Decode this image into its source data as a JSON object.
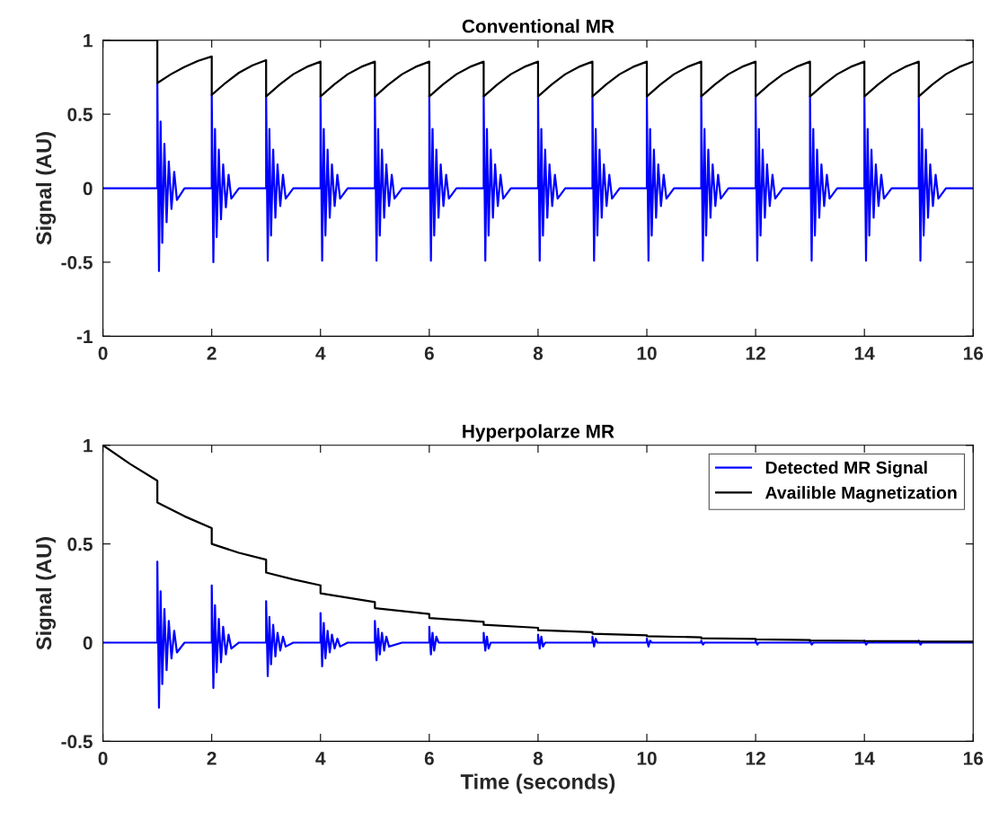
{
  "chart_data": [
    {
      "type": "line",
      "title": "Conventional MR",
      "ylabel": "Signal (AU)",
      "xlim": [
        0,
        16
      ],
      "xticks": [
        0,
        2,
        4,
        6,
        8,
        10,
        12,
        14,
        16
      ],
      "ylim": [
        -1,
        1
      ],
      "yticks": [
        -1,
        -0.5,
        0,
        0.5,
        1
      ],
      "grid": false,
      "legend": false,
      "marker": "none",
      "line_style": "solid",
      "series": [
        {
          "color": "#0000ff",
          "x": [
            0,
            1,
            1,
            1.03,
            1.06,
            1.09,
            1.13,
            1.17,
            1.21,
            1.26,
            1.31,
            1.36,
            1.5,
            2,
            2,
            2.03,
            2.06,
            2.09,
            2.13,
            2.17,
            2.21,
            2.26,
            2.31,
            2.36,
            2.5,
            3,
            3,
            3.03,
            3.06,
            3.09,
            3.13,
            3.17,
            3.21,
            3.26,
            3.31,
            3.36,
            3.5,
            4,
            4,
            4.03,
            4.06,
            4.09,
            4.13,
            4.17,
            4.21,
            4.26,
            4.31,
            4.36,
            4.5,
            5,
            5,
            5.03,
            5.06,
            5.09,
            5.13,
            5.17,
            5.21,
            5.26,
            5.31,
            5.36,
            5.5,
            6,
            6,
            6.03,
            6.06,
            6.09,
            6.13,
            6.17,
            6.21,
            6.26,
            6.31,
            6.36,
            6.5,
            7,
            7,
            7.03,
            7.06,
            7.09,
            7.13,
            7.17,
            7.21,
            7.26,
            7.31,
            7.36,
            7.5,
            8,
            8,
            8.03,
            8.06,
            8.09,
            8.13,
            8.17,
            8.21,
            8.26,
            8.31,
            8.36,
            8.5,
            9,
            9,
            9.03,
            9.06,
            9.09,
            9.13,
            9.17,
            9.21,
            9.26,
            9.31,
            9.36,
            9.5,
            10,
            10,
            10.03,
            10.06,
            10.09,
            10.13,
            10.17,
            10.21,
            10.26,
            10.31,
            10.36,
            10.5,
            11,
            11,
            11.03,
            11.06,
            11.09,
            11.13,
            11.17,
            11.21,
            11.26,
            11.31,
            11.36,
            11.5,
            12,
            12,
            12.03,
            12.06,
            12.09,
            12.13,
            12.17,
            12.21,
            12.26,
            12.31,
            12.36,
            12.5,
            13,
            13,
            13.03,
            13.06,
            13.09,
            13.13,
            13.17,
            13.21,
            13.26,
            13.31,
            13.36,
            13.5,
            14,
            14,
            14.03,
            14.06,
            14.09,
            14.13,
            14.17,
            14.21,
            14.26,
            14.31,
            14.36,
            14.5,
            15,
            15,
            15.03,
            15.06,
            15.09,
            15.13,
            15.17,
            15.21,
            15.26,
            15.31,
            15.36,
            15.5,
            16
          ],
          "values": [
            0,
            0,
            0.71,
            -0.56,
            0.45,
            -0.37,
            0.3,
            -0.23,
            0.18,
            -0.14,
            0.11,
            -0.08,
            0,
            0,
            0.63,
            -0.5,
            0.4,
            -0.33,
            0.26,
            -0.21,
            0.16,
            -0.13,
            0.09,
            -0.07,
            0,
            0,
            0.62,
            -0.49,
            0.4,
            -0.32,
            0.26,
            -0.2,
            0.16,
            -0.12,
            0.09,
            -0.07,
            0,
            0,
            0.62,
            -0.49,
            0.4,
            -0.32,
            0.26,
            -0.2,
            0.16,
            -0.12,
            0.09,
            -0.07,
            0,
            0,
            0.62,
            -0.49,
            0.4,
            -0.32,
            0.26,
            -0.2,
            0.16,
            -0.12,
            0.09,
            -0.07,
            0,
            0,
            0.62,
            -0.49,
            0.4,
            -0.32,
            0.26,
            -0.2,
            0.16,
            -0.12,
            0.09,
            -0.07,
            0,
            0,
            0.62,
            -0.49,
            0.4,
            -0.32,
            0.26,
            -0.2,
            0.16,
            -0.12,
            0.09,
            -0.07,
            0,
            0,
            0.62,
            -0.49,
            0.4,
            -0.32,
            0.26,
            -0.2,
            0.16,
            -0.12,
            0.09,
            -0.07,
            0,
            0,
            0.62,
            -0.49,
            0.4,
            -0.32,
            0.26,
            -0.2,
            0.16,
            -0.12,
            0.09,
            -0.07,
            0,
            0,
            0.62,
            -0.49,
            0.4,
            -0.32,
            0.26,
            -0.2,
            0.16,
            -0.12,
            0.09,
            -0.07,
            0,
            0,
            0.62,
            -0.49,
            0.4,
            -0.32,
            0.26,
            -0.2,
            0.16,
            -0.12,
            0.09,
            -0.07,
            0,
            0,
            0.62,
            -0.49,
            0.4,
            -0.32,
            0.26,
            -0.2,
            0.16,
            -0.12,
            0.09,
            -0.07,
            0,
            0,
            0.62,
            -0.49,
            0.4,
            -0.32,
            0.26,
            -0.2,
            0.16,
            -0.12,
            0.09,
            -0.07,
            0,
            0,
            0.62,
            -0.49,
            0.4,
            -0.32,
            0.26,
            -0.2,
            0.16,
            -0.12,
            0.09,
            -0.07,
            0,
            0,
            0.62,
            -0.49,
            0.4,
            -0.32,
            0.26,
            -0.2,
            0.16,
            -0.12,
            0.09,
            -0.07,
            0,
            0
          ]
        },
        {
          "color": "#000000",
          "x": [
            0,
            1,
            1,
            1.25,
            1.5,
            1.75,
            2,
            2,
            2.25,
            2.5,
            2.75,
            3,
            3,
            3.25,
            3.5,
            3.75,
            4,
            4,
            4.25,
            4.5,
            4.75,
            5,
            5,
            5.25,
            5.5,
            5.75,
            6,
            6,
            6.25,
            6.5,
            6.75,
            7,
            7,
            7.25,
            7.5,
            7.75,
            8,
            8,
            8.25,
            8.5,
            8.75,
            9,
            9,
            9.25,
            9.5,
            9.75,
            10,
            10,
            10.25,
            10.5,
            10.75,
            11,
            11,
            11.25,
            11.5,
            11.75,
            12,
            12,
            12.25,
            12.5,
            12.75,
            13,
            13,
            13.25,
            13.5,
            13.75,
            14,
            14,
            14.25,
            14.5,
            14.75,
            15,
            15,
            15.25,
            15.5,
            15.75,
            16
          ],
          "values": [
            1,
            1,
            0.71,
            0.77,
            0.82,
            0.86,
            0.89,
            0.63,
            0.71,
            0.78,
            0.83,
            0.865,
            0.62,
            0.7,
            0.77,
            0.82,
            0.855,
            0.62,
            0.7,
            0.77,
            0.82,
            0.855,
            0.62,
            0.7,
            0.77,
            0.82,
            0.855,
            0.62,
            0.7,
            0.77,
            0.82,
            0.855,
            0.62,
            0.7,
            0.77,
            0.82,
            0.855,
            0.62,
            0.7,
            0.77,
            0.82,
            0.855,
            0.62,
            0.7,
            0.77,
            0.82,
            0.855,
            0.62,
            0.7,
            0.77,
            0.82,
            0.855,
            0.62,
            0.7,
            0.77,
            0.82,
            0.855,
            0.62,
            0.7,
            0.77,
            0.82,
            0.855,
            0.62,
            0.7,
            0.77,
            0.82,
            0.855,
            0.62,
            0.7,
            0.77,
            0.82,
            0.855,
            0.62,
            0.7,
            0.77,
            0.82,
            0.855
          ]
        }
      ]
    },
    {
      "type": "line",
      "title": "Hyperpolarze MR",
      "xlabel": "Time (seconds)",
      "ylabel": "Signal (AU)",
      "xlim": [
        0,
        16
      ],
      "xticks": [
        0,
        2,
        4,
        6,
        8,
        10,
        12,
        14,
        16
      ],
      "ylim": [
        -0.5,
        1
      ],
      "yticks": [
        -0.5,
        0,
        0.5,
        1
      ],
      "grid": false,
      "legend": "top right",
      "marker": "none",
      "line_style": "solid",
      "series": [
        {
          "name": "Detected MR Signal",
          "color": "#0000ff",
          "x": [
            0,
            1,
            1,
            1.03,
            1.06,
            1.09,
            1.13,
            1.17,
            1.21,
            1.26,
            1.31,
            1.36,
            1.5,
            2,
            2,
            2.03,
            2.06,
            2.09,
            2.13,
            2.17,
            2.21,
            2.26,
            2.31,
            2.36,
            2.5,
            3,
            3,
            3.03,
            3.06,
            3.09,
            3.13,
            3.17,
            3.21,
            3.26,
            3.31,
            3.36,
            3.5,
            4,
            4,
            4.03,
            4.06,
            4.09,
            4.13,
            4.17,
            4.21,
            4.26,
            4.31,
            4.36,
            4.5,
            5,
            5,
            5.03,
            5.06,
            5.09,
            5.13,
            5.17,
            5.21,
            5.26,
            5.5,
            6,
            6,
            6.03,
            6.06,
            6.09,
            6.13,
            6.17,
            7,
            7,
            7.03,
            7.06,
            7.09,
            7.13,
            8,
            8,
            8.03,
            8.06,
            8.09,
            8.13,
            9,
            9,
            9.03,
            9.06,
            9.09,
            10,
            10,
            10.03,
            10.06,
            10.09,
            11,
            11,
            11.03,
            11.06,
            12,
            12,
            12.03,
            12.06,
            13,
            13,
            13.03,
            13.06,
            14,
            14,
            14.03,
            14.06,
            15,
            15,
            15.03,
            15.06,
            16
          ],
          "values": [
            0,
            0,
            0.41,
            -0.33,
            0.26,
            -0.21,
            0.17,
            -0.14,
            0.11,
            -0.08,
            0.06,
            -0.05,
            0,
            0,
            0.29,
            -0.23,
            0.19,
            -0.15,
            0.12,
            -0.1,
            0.08,
            -0.06,
            0.04,
            -0.03,
            0,
            0,
            0.21,
            -0.17,
            0.13,
            -0.11,
            0.09,
            -0.07,
            0.05,
            -0.04,
            0.03,
            -0.02,
            0,
            0,
            0.15,
            -0.12,
            0.1,
            -0.08,
            0.06,
            -0.05,
            0.04,
            -0.03,
            0.02,
            -0.02,
            0,
            0,
            0.11,
            -0.09,
            0.07,
            -0.06,
            0.05,
            -0.04,
            0.03,
            -0.02,
            0,
            0,
            0.08,
            -0.06,
            0.05,
            -0.04,
            0.03,
            0,
            0,
            0.05,
            -0.04,
            0.03,
            -0.03,
            0,
            0,
            0.04,
            -0.03,
            0.03,
            -0.02,
            0,
            0,
            0.03,
            -0.02,
            0.02,
            0,
            0,
            0.02,
            -0.02,
            0.01,
            0,
            0,
            0.01,
            -0.01,
            0,
            0,
            0.01,
            -0.01,
            0,
            0,
            0.01,
            -0.01,
            0,
            0,
            0.01,
            -0.01,
            0,
            0,
            0.01,
            -0.01,
            0,
            0
          ]
        },
        {
          "name": "Availible Magnetization",
          "color": "#000000",
          "x": [
            0,
            0.5,
            1,
            1,
            1.5,
            2,
            2,
            2.5,
            3,
            3,
            3.5,
            4,
            4,
            5,
            5,
            6,
            6,
            7,
            7,
            8,
            8,
            9,
            9,
            10,
            10,
            11,
            11,
            12,
            12,
            13,
            13,
            14,
            14,
            15,
            15,
            16
          ],
          "values": [
            1,
            0.905,
            0.82,
            0.71,
            0.64,
            0.58,
            0.5,
            0.455,
            0.42,
            0.355,
            0.32,
            0.29,
            0.25,
            0.205,
            0.175,
            0.145,
            0.125,
            0.105,
            0.09,
            0.075,
            0.063,
            0.053,
            0.045,
            0.037,
            0.032,
            0.027,
            0.022,
            0.019,
            0.016,
            0.013,
            0.011,
            0.009,
            0.008,
            0.007,
            0.006,
            0.005
          ]
        }
      ]
    }
  ]
}
